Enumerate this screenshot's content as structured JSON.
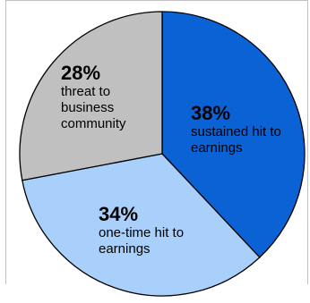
{
  "chart_data": {
    "type": "pie",
    "slices": [
      {
        "label": "sustained hit to earnings",
        "value": 38,
        "value_label": "38%",
        "color": "#0b62d4"
      },
      {
        "label": "one-time hit to earnings",
        "value": 34,
        "value_label": "34%",
        "color": "#a8d0fa"
      },
      {
        "label": "threat to business community",
        "value": 28,
        "value_label": "28%",
        "color": "#c0c0c0"
      }
    ],
    "start_angle_deg": 0,
    "direction": "clockwise",
    "slice_outline": "#000000"
  }
}
